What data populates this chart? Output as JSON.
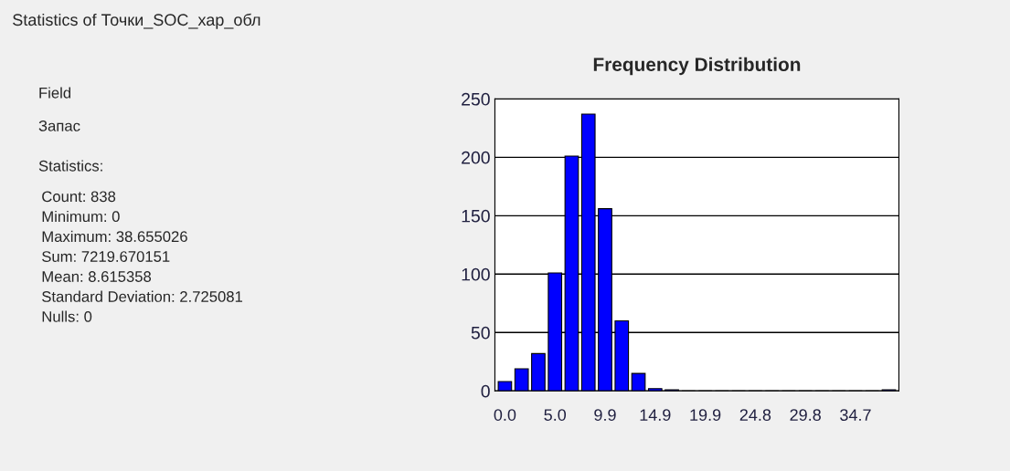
{
  "chart_data": {
    "type": "bar",
    "title": "Frequency Distribution",
    "categories": [
      "0.0",
      null,
      null,
      "5.0",
      null,
      null,
      "9.9",
      null,
      null,
      "14.9",
      null,
      null,
      "19.9",
      null,
      null,
      "24.8",
      null,
      null,
      "29.8",
      null,
      null,
      "34.7",
      null,
      null
    ],
    "values": [
      8,
      19,
      32,
      101,
      201,
      237,
      156,
      60,
      15,
      2,
      1,
      0,
      0,
      0,
      0,
      0,
      0,
      0,
      0,
      0,
      0,
      0,
      0,
      1
    ],
    "color": "#0000ff",
    "ylim": [
      0,
      250
    ],
    "yticks": [
      0,
      50,
      100,
      150,
      200,
      250
    ],
    "grid": "y",
    "annotations": [
      "Statistics of Точки_SOC_хар_обл",
      "Field",
      "Запас",
      "Statistics:",
      "Count: 838",
      "Minimum: 0",
      "Maximum: 38.655026",
      "Sum: 7219.670151",
      "Mean: 8.615358",
      "Standard Deviation: 2.725081",
      "Nulls: 0"
    ]
  }
}
